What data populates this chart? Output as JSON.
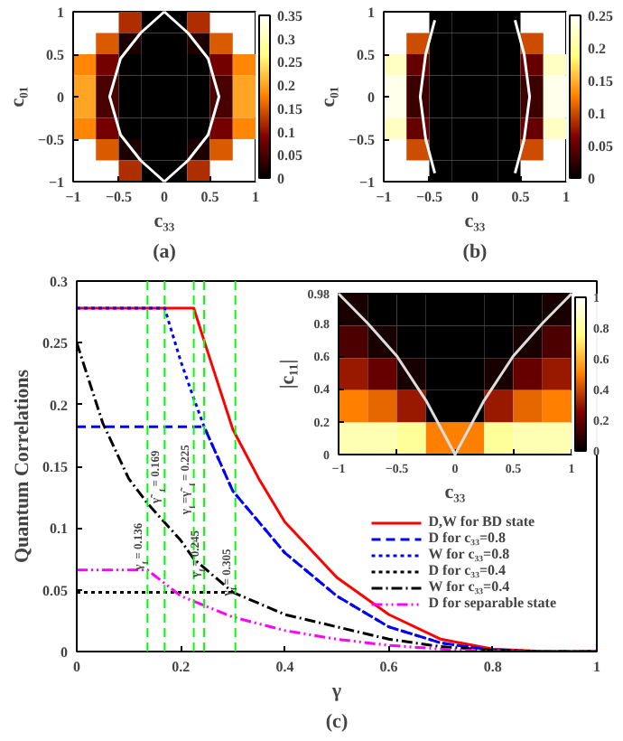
{
  "chart_data": [
    {
      "type": "heatmap",
      "title": "(a)",
      "xlabel": "c₃₃",
      "ylabel": "c₀₁",
      "xlim": [
        -1,
        1
      ],
      "ylim": [
        -1,
        1
      ],
      "xticks": [
        -1,
        -0.5,
        0,
        0.5,
        1
      ],
      "yticks": [
        -1,
        -0.5,
        0,
        0.5,
        1
      ],
      "clim": [
        0,
        0.35
      ],
      "cticks": [
        0,
        0.05,
        0.1,
        0.15,
        0.2,
        0.25,
        0.3,
        0.35
      ],
      "x": [
        -0.875,
        -0.625,
        -0.375,
        -0.125,
        0.125,
        0.375,
        0.625,
        0.875
      ],
      "y": [
        0.875,
        0.625,
        0.375,
        0.125,
        -0.125,
        -0.375,
        -0.625,
        -0.875
      ],
      "cells": [
        [
          null,
          null,
          0.12,
          0,
          0,
          0.12,
          null,
          null
        ],
        [
          null,
          0.15,
          0.02,
          0,
          0,
          0.02,
          0.15,
          null
        ],
        [
          0.18,
          0.08,
          0,
          0,
          0,
          0,
          0.08,
          0.18
        ],
        [
          0.2,
          0.05,
          0,
          0,
          0,
          0,
          0.05,
          0.2
        ],
        [
          0.2,
          0.05,
          0,
          0,
          0,
          0,
          0.05,
          0.2
        ],
        [
          0.18,
          0.08,
          0,
          0,
          0,
          0,
          0.08,
          0.18
        ],
        [
          null,
          0.15,
          0.02,
          0,
          0,
          0.02,
          0.15,
          null
        ],
        [
          null,
          null,
          0.12,
          0,
          0,
          0.12,
          null,
          null
        ]
      ],
      "series": [
        {
          "type": "line",
          "color": "#ffffff",
          "x": [
            0,
            -0.26,
            -0.48,
            -0.6,
            -0.48,
            -0.26,
            0
          ],
          "values": [
            1,
            0.75,
            0.45,
            0,
            -0.45,
            -0.75,
            -1
          ]
        },
        {
          "type": "line",
          "color": "#ffffff",
          "x": [
            0,
            0.26,
            0.48,
            0.6,
            0.48,
            0.26,
            0
          ],
          "values": [
            1,
            0.75,
            0.45,
            0,
            -0.45,
            -0.75,
            -1
          ]
        }
      ]
    },
    {
      "type": "heatmap",
      "title": "(b)",
      "xlabel": "c₃₃",
      "ylabel": "c₀₁",
      "xlim": [
        -1,
        1
      ],
      "ylim": [
        -1,
        1
      ],
      "xticks": [
        -1,
        -0.5,
        0,
        0.5,
        1
      ],
      "yticks": [
        -1,
        -0.5,
        0,
        0.5,
        1
      ],
      "clim": [
        0,
        0.25
      ],
      "cticks": [
        0,
        0.05,
        0.1,
        0.15,
        0.2,
        0.25
      ],
      "x": [
        -0.875,
        -0.625,
        -0.375,
        -0.125,
        0.125,
        0.375,
        0.625,
        0.875
      ],
      "y": [
        0.875,
        0.625,
        0.375,
        0.125,
        -0.125,
        -0.375,
        -0.625,
        -0.875
      ],
      "cells": [
        [
          null,
          null,
          0,
          0,
          0,
          0,
          null,
          null
        ],
        [
          null,
          0.1,
          0,
          0,
          0,
          0,
          0.1,
          null
        ],
        [
          0.22,
          0.05,
          0,
          0,
          0,
          0,
          0.05,
          0.22
        ],
        [
          0.24,
          0.03,
          0,
          0,
          0,
          0,
          0.03,
          0.24
        ],
        [
          0.24,
          0.03,
          0,
          0,
          0,
          0,
          0.03,
          0.24
        ],
        [
          0.22,
          0.05,
          0,
          0,
          0,
          0,
          0.05,
          0.22
        ],
        [
          null,
          0.1,
          0,
          0,
          0,
          0,
          0.1,
          null
        ],
        [
          null,
          null,
          0,
          0,
          0,
          0,
          null,
          null
        ]
      ],
      "series": [
        {
          "type": "line",
          "color": "#ffffff",
          "x": [
            -0.44,
            -0.54,
            -0.6,
            -0.54,
            -0.44
          ],
          "values": [
            0.9,
            0.5,
            0,
            -0.5,
            -0.9
          ]
        },
        {
          "type": "line",
          "color": "#ffffff",
          "x": [
            0.44,
            0.54,
            0.6,
            0.54,
            0.44
          ],
          "values": [
            0.9,
            0.5,
            0,
            -0.5,
            -0.9
          ]
        }
      ]
    },
    {
      "type": "line",
      "title": "(c)",
      "xlabel": "γ",
      "ylabel": "Quantum Correlations",
      "xlim": [
        0,
        1
      ],
      "ylim": [
        0,
        0.3
      ],
      "xticks": [
        0,
        0.2,
        0.4,
        0.6,
        0.8,
        1
      ],
      "yticks": [
        0,
        0.05,
        0.1,
        0.15,
        0.2,
        0.25,
        0.3
      ],
      "grid": false,
      "legend": "bottom right",
      "series": [
        {
          "name": "D,W for BD state",
          "color": "#ff0000",
          "line_style": "solid",
          "x": [
            0,
            0.225,
            0.25,
            0.3,
            0.35,
            0.4,
            0.5,
            0.6,
            0.7,
            0.8,
            0.9,
            1
          ],
          "values": [
            0.278,
            0.278,
            0.245,
            0.18,
            0.14,
            0.105,
            0.06,
            0.03,
            0.01,
            0.002,
            0,
            0
          ]
        },
        {
          "name": "D for c₃₃=0.8",
          "color": "#0000ff",
          "line_style": "dashed",
          "x": [
            0,
            0.245,
            0.3,
            0.4,
            0.5,
            0.6,
            0.7,
            0.8,
            0.9,
            1
          ],
          "values": [
            0.182,
            0.182,
            0.13,
            0.08,
            0.045,
            0.02,
            0.007,
            0.001,
            0,
            0
          ]
        },
        {
          "name": "W for c₃₃=0.8",
          "color": "#0000ff",
          "line_style": "dotted",
          "x": [
            0,
            0.169,
            0.2,
            0.225,
            0.245,
            0.3,
            0.4,
            0.5,
            0.6,
            0.7,
            0.8,
            0.9,
            1
          ],
          "values": [
            0.278,
            0.278,
            0.235,
            0.205,
            0.182,
            0.13,
            0.08,
            0.045,
            0.02,
            0.007,
            0.001,
            0,
            0
          ]
        },
        {
          "name": "D for c₃₃=0.4",
          "color": "#000000",
          "line_style": "dotted",
          "x": [
            0,
            0.305
          ],
          "values": [
            0.048,
            0.048
          ]
        },
        {
          "name": "W for c₃₃=0.4",
          "color": "#000000",
          "line_style": "dashdot",
          "x": [
            0,
            0.05,
            0.1,
            0.136,
            0.2,
            0.225,
            0.3,
            0.4,
            0.5,
            0.6,
            0.7,
            0.8,
            0.9,
            1
          ],
          "values": [
            0.25,
            0.185,
            0.14,
            0.12,
            0.09,
            0.075,
            0.048,
            0.03,
            0.02,
            0.01,
            0.004,
            0.001,
            0,
            0
          ]
        },
        {
          "name": "D for separable state",
          "color": "#ff00ff",
          "line_style": "dashdotdot",
          "x": [
            0,
            0.136,
            0.2,
            0.3,
            0.4,
            0.5,
            0.6,
            0.7,
            0.8,
            1
          ],
          "values": [
            0.066,
            0.066,
            0.045,
            0.028,
            0.017,
            0.01,
            0.005,
            0.002,
            0,
            0
          ]
        }
      ],
      "ref_lines": [
        {
          "axis": "x",
          "value": 0.136,
          "label": "γ$_{f}$ = 0.136",
          "color": "#00ff00",
          "line_style": "dashed"
        },
        {
          "axis": "x",
          "value": 0.169,
          "label": "γ̃$_{f}$ = 0.169",
          "color": "#00ff00",
          "line_style": "dashed"
        },
        {
          "axis": "x",
          "value": 0.225,
          "label": "γ$_{f}$=γ̃$_{f}$ = 0.225",
          "color": "#00ff00",
          "line_style": "dashed"
        },
        {
          "axis": "x",
          "value": 0.245,
          "label": "γ$_{f}$ = 0.245",
          "color": "#00ff00",
          "line_style": "dashed"
        },
        {
          "axis": "x",
          "value": 0.305,
          "label": "γ$_{f}$ = 0.305",
          "color": "#00ff00",
          "line_style": "dashed"
        }
      ]
    },
    {
      "type": "heatmap",
      "xlabel": "c₃₃",
      "ylabel": "|c₁₁|",
      "xlim": [
        -1,
        1
      ],
      "ylim": [
        0,
        0.98
      ],
      "xticks": [
        -1,
        -0.5,
        0,
        0.5,
        1
      ],
      "yticks": [
        0,
        0.2,
        0.4,
        0.6,
        0.8,
        0.98
      ],
      "clim": [
        0,
        1
      ],
      "cticks": [
        0,
        0.2,
        0.4,
        0.6,
        0.8,
        1
      ],
      "x": [
        -0.875,
        -0.625,
        -0.375,
        -0.125,
        0.125,
        0.375,
        0.625,
        0.875
      ],
      "y": [
        0.882,
        0.686,
        0.49,
        0.294,
        0.098
      ],
      "cells": [
        [
          0.05,
          0,
          0,
          0,
          0,
          0,
          0,
          0.05
        ],
        [
          0.15,
          0.05,
          0,
          0,
          0,
          0,
          0.05,
          0.15
        ],
        [
          0.3,
          0.2,
          0.05,
          0,
          0,
          0.05,
          0.2,
          0.3
        ],
        [
          0.5,
          0.45,
          0.3,
          0,
          0,
          0.3,
          0.45,
          0.5
        ],
        [
          0.85,
          0.85,
          0.8,
          0.5,
          0.5,
          0.8,
          0.85,
          0.85
        ]
      ],
      "series": [
        {
          "type": "line",
          "color": "#dddddd",
          "x": [
            -1,
            -0.75,
            -0.5,
            -0.25,
            0,
            0.25,
            0.5,
            0.75,
            1
          ],
          "values": [
            0.98,
            0.8,
            0.6,
            0.33,
            0,
            0.33,
            0.6,
            0.8,
            0.98
          ]
        }
      ]
    }
  ]
}
